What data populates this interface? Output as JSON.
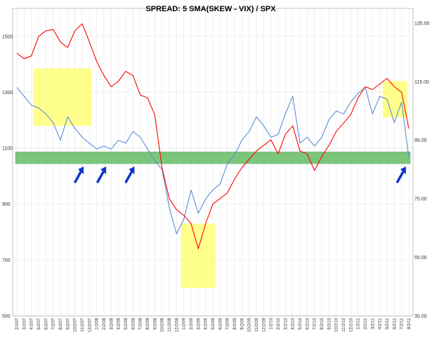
{
  "chart_data": {
    "type": "line",
    "title": "SPREAD: 5 SMA(SKEW - VIX) / SPX",
    "left_axis": {
      "ticks": [
        "500",
        "700",
        "900",
        "1100",
        "1300",
        "1500"
      ],
      "ylim": [
        500,
        1600
      ]
    },
    "right_axis": {
      "ticks": [
        "35.00",
        "55.00",
        "75.00",
        "95.00",
        "115.00",
        "135.00"
      ],
      "ylim": [
        35,
        140
      ]
    },
    "x_ticks": [
      "2/2/07",
      "3/2/07",
      "4/2/07",
      "5/2/07",
      "6/2/07",
      "7/2/07",
      "8/2/07",
      "9/2/07",
      "10/2/07",
      "11/2/07",
      "12/2/07",
      "1/2/08",
      "2/2/08",
      "3/2/08",
      "4/2/08",
      "5/2/08",
      "6/2/08",
      "7/2/08",
      "8/2/08",
      "9/2/08",
      "10/2/08",
      "11/2/08",
      "12/2/08",
      "1/2/09",
      "2/2/09",
      "3/2/09",
      "4/2/09",
      "5/2/09",
      "6/2/09",
      "7/2/09",
      "8/2/09",
      "9/2/09",
      "10/2/09",
      "11/2/09",
      "12/2/09",
      "1/2/10",
      "2/2/10",
      "3/2/10",
      "4/2/10",
      "5/2/10",
      "6/2/10",
      "7/2/10",
      "8/2/10",
      "9/2/10",
      "10/2/10",
      "11/2/10",
      "12/2/10",
      "1/2/11",
      "2/2/11",
      "3/2/11",
      "4/2/11",
      "5/2/11",
      "6/2/11",
      "7/2/11",
      "8/2/11"
    ],
    "series": [
      {
        "axis": "left",
        "color": "#ff0000",
        "values": [
          1440,
          1420,
          1430,
          1500,
          1520,
          1525,
          1480,
          1460,
          1520,
          1545,
          1480,
          1410,
          1360,
          1320,
          1340,
          1375,
          1360,
          1290,
          1280,
          1220,
          1030,
          920,
          880,
          860,
          830,
          740,
          830,
          900,
          920,
          940,
          990,
          1030,
          1060,
          1090,
          1110,
          1130,
          1080,
          1150,
          1180,
          1090,
          1080,
          1020,
          1070,
          1110,
          1160,
          1190,
          1220,
          1280,
          1320,
          1310,
          1330,
          1350,
          1320,
          1300,
          1170
        ]
      },
      {
        "axis": "right",
        "color": "#5b8dd6",
        "values": [
          113,
          110,
          107,
          106,
          104,
          101,
          95,
          103,
          99,
          96,
          94,
          92,
          93,
          92,
          95,
          94,
          98,
          96,
          92,
          88,
          85,
          72,
          63,
          68,
          78,
          70,
          75,
          78,
          80,
          87,
          90,
          95,
          98,
          103,
          100,
          96,
          97,
          104,
          110,
          94,
          96,
          93,
          96,
          102,
          105,
          104,
          108,
          111,
          113,
          104,
          110,
          109,
          101,
          108,
          89
        ]
      }
    ],
    "annotations": {
      "band": {
        "axis": "right",
        "from": 87,
        "to": 91,
        "color": "#5cb85c"
      },
      "highlights": [
        {
          "x_from": 2.3,
          "x_to": 10.3,
          "axis": "left",
          "y_from": 1180,
          "y_to": 1385,
          "color": "#ffff66"
        },
        {
          "x_from": 22.6,
          "x_to": 27.4,
          "axis": "left",
          "y_from": 600,
          "y_to": 830,
          "color": "#ffff66"
        },
        {
          "x_from": 50.4,
          "x_to": 53.8,
          "axis": "left",
          "y_from": 1210,
          "y_to": 1340,
          "color": "#ffff66"
        }
      ],
      "arrows_at": [
        9.2,
        12.3,
        16.2,
        53.6
      ]
    }
  }
}
